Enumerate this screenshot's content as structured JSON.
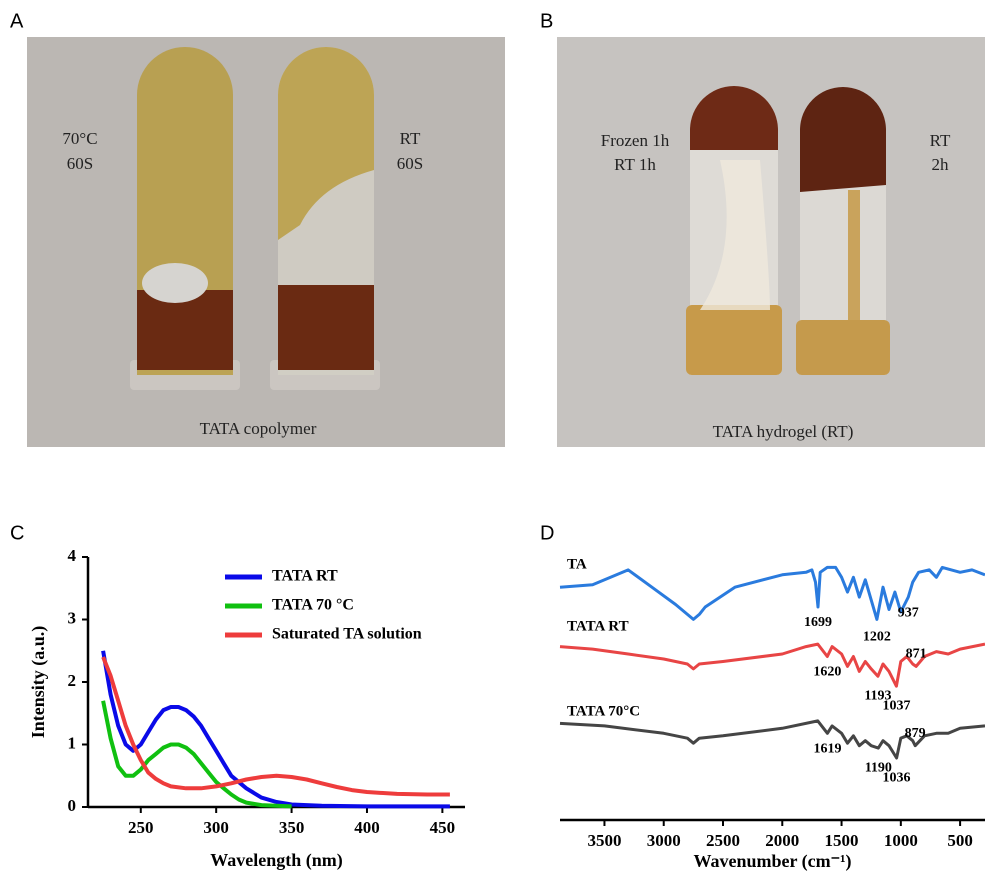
{
  "figure": {
    "panel_labels": [
      "A",
      "B",
      "C",
      "D"
    ],
    "photo_a": {
      "left_label": [
        "70°C",
        "60S"
      ],
      "right_label": [
        "RT",
        "60S"
      ],
      "caption": "TATA copolymer"
    },
    "photo_b": {
      "left_label": [
        "Frozen 1h",
        "RT 1h"
      ],
      "right_label": [
        "RT",
        "2h"
      ],
      "caption": "TATA hydrogel (RT)"
    }
  },
  "chart_data": [
    {
      "type": "line",
      "x_label": "Wavelength (nm)",
      "y_label": "Intensity (a.u.)",
      "xlim": [
        215,
        465
      ],
      "xticks": [
        250,
        300,
        350,
        400,
        450
      ],
      "ylim": [
        0,
        4
      ],
      "yticks": [
        0,
        1,
        2,
        3,
        4
      ],
      "legend": "top-right",
      "series": [
        {
          "name": "TATA RT",
          "color": "#0a0ae8",
          "x": [
            225,
            230,
            235,
            240,
            245,
            250,
            255,
            260,
            265,
            270,
            275,
            280,
            285,
            290,
            295,
            300,
            305,
            310,
            320,
            330,
            340,
            350,
            370,
            400,
            455
          ],
          "values": [
            2.5,
            1.8,
            1.3,
            1.0,
            0.9,
            1.0,
            1.2,
            1.4,
            1.55,
            1.6,
            1.6,
            1.55,
            1.45,
            1.3,
            1.1,
            0.9,
            0.7,
            0.5,
            0.3,
            0.15,
            0.08,
            0.04,
            0.02,
            0.01,
            0.01
          ]
        },
        {
          "name": "TATA 70 °C",
          "color": "#10c010",
          "x": [
            225,
            230,
            235,
            240,
            245,
            250,
            255,
            260,
            265,
            270,
            275,
            280,
            285,
            290,
            295,
            300,
            305,
            310,
            315,
            320,
            330,
            340,
            350
          ],
          "values": [
            1.7,
            1.1,
            0.65,
            0.5,
            0.5,
            0.6,
            0.75,
            0.85,
            0.95,
            1.0,
            1.0,
            0.95,
            0.85,
            0.7,
            0.55,
            0.4,
            0.3,
            0.2,
            0.12,
            0.07,
            0.03,
            0.02,
            0.01
          ]
        },
        {
          "name": "Saturated TA solution",
          "color": "#ee3c3c",
          "x": [
            225,
            230,
            235,
            240,
            245,
            250,
            255,
            260,
            265,
            270,
            280,
            290,
            300,
            310,
            320,
            330,
            340,
            350,
            360,
            370,
            380,
            390,
            400,
            420,
            440,
            455
          ],
          "values": [
            2.4,
            2.1,
            1.7,
            1.3,
            1.0,
            0.75,
            0.55,
            0.45,
            0.38,
            0.33,
            0.3,
            0.3,
            0.33,
            0.38,
            0.44,
            0.48,
            0.5,
            0.48,
            0.44,
            0.38,
            0.32,
            0.27,
            0.24,
            0.21,
            0.2,
            0.2
          ]
        }
      ]
    },
    {
      "type": "line",
      "x_label": "Wavenumber (cm⁻¹)",
      "xlim": [
        3875,
        290
      ],
      "xticks": [
        3500,
        3000,
        2500,
        2000,
        1500,
        1000,
        500
      ],
      "ylim": [
        0,
        10.5
      ],
      "series": [
        {
          "name": "TA",
          "color": "#2a7bde",
          "peaks": [
            1699,
            1202,
            937
          ],
          "x": [
            3875,
            3600,
            3300,
            3100,
            2900,
            2750,
            2700,
            2650,
            2400,
            2000,
            1800,
            1750,
            1720,
            1699,
            1680,
            1620,
            1550,
            1500,
            1450,
            1400,
            1350,
            1300,
            1202,
            1150,
            1100,
            1050,
            1000,
            937,
            900,
            850,
            760,
            700,
            650,
            500,
            400,
            290
          ],
          "values": [
            9.2,
            9.3,
            9.9,
            9.2,
            8.5,
            7.9,
            8.1,
            8.4,
            9.2,
            9.7,
            9.8,
            9.9,
            9.4,
            8.4,
            9.8,
            10.0,
            10.0,
            9.6,
            9.0,
            9.6,
            8.8,
            9.5,
            7.9,
            9.2,
            8.3,
            9.0,
            8.2,
            8.8,
            9.4,
            9.8,
            9.9,
            9.6,
            10.0,
            9.8,
            9.9,
            9.7
          ]
        },
        {
          "name": "TATA RT",
          "color": "#e84545",
          "peaks": [
            1620,
            1193,
            1037,
            871
          ],
          "x": [
            3875,
            3600,
            3300,
            3000,
            2800,
            2750,
            2700,
            2500,
            2000,
            1800,
            1700,
            1620,
            1580,
            1500,
            1450,
            1400,
            1350,
            1300,
            1250,
            1193,
            1150,
            1100,
            1037,
            1000,
            950,
            900,
            871,
            800,
            700,
            600,
            500,
            290
          ],
          "values": [
            6.8,
            6.7,
            6.5,
            6.3,
            6.1,
            5.9,
            6.1,
            6.2,
            6.5,
            6.8,
            6.9,
            6.4,
            6.8,
            6.5,
            6.0,
            6.4,
            5.8,
            6.2,
            5.9,
            5.6,
            6.1,
            5.8,
            5.2,
            6.2,
            6.4,
            6.1,
            6.0,
            6.4,
            6.6,
            6.5,
            6.7,
            6.9
          ]
        },
        {
          "name": "TATA 70°C",
          "color": "#454545",
          "peaks": [
            1619,
            1190,
            1036,
            879
          ],
          "x": [
            3875,
            3500,
            3000,
            2800,
            2750,
            2700,
            2500,
            2000,
            1700,
            1619,
            1580,
            1500,
            1450,
            1400,
            1350,
            1300,
            1250,
            1190,
            1150,
            1100,
            1036,
            1000,
            950,
            900,
            879,
            800,
            700,
            600,
            500,
            290
          ],
          "values": [
            3.7,
            3.6,
            3.3,
            3.1,
            2.9,
            3.1,
            3.2,
            3.5,
            3.8,
            3.3,
            3.6,
            3.3,
            2.9,
            3.2,
            2.8,
            3.0,
            2.8,
            2.7,
            3.0,
            2.8,
            2.3,
            3.1,
            3.2,
            3.0,
            2.8,
            3.2,
            3.3,
            3.3,
            3.5,
            3.6
          ]
        }
      ]
    }
  ]
}
